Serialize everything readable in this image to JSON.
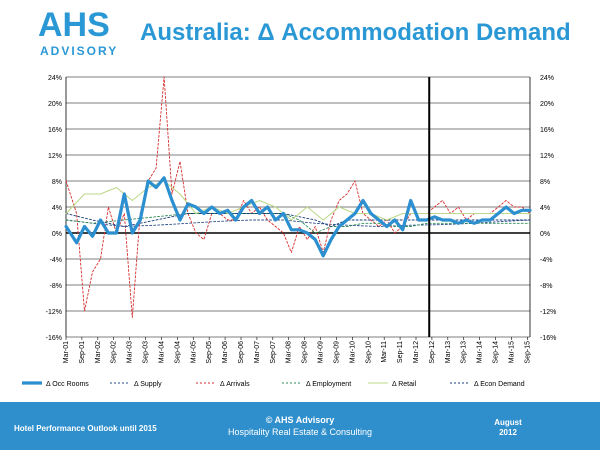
{
  "logo": {
    "main": "AHS",
    "sub": "ADVISORY"
  },
  "page_title": "Australia: Δ Accommodation Demand",
  "footer": {
    "left": "Hotel Performance Outlook until 2015",
    "center_line1": "© AHS Advisory",
    "center_line2": "Hospitality Real Estate & Consulting",
    "right_line1": "August",
    "right_line2": "2012"
  },
  "colors": {
    "brand": "#2b98d6",
    "footer_bg": "#2f8fcc"
  },
  "chart_data": {
    "type": "line",
    "yticks": [
      "-16%",
      "-12%",
      "-8%",
      "-4%",
      "0%",
      "4%",
      "8%",
      "12%",
      "16%",
      "20%",
      "24%"
    ],
    "ylim": [
      -16,
      24
    ],
    "x_start": 2001.167,
    "x_end": 2015.75,
    "categories": [
      "Mar-01",
      "Sep-01",
      "Mar-02",
      "Sep-02",
      "Mar-03",
      "Sep-03",
      "Mar-04",
      "Sep-04",
      "Mar-05",
      "Sep-05",
      "Mar-06",
      "Sep-06",
      "Mar-07",
      "Sep-07",
      "Mar-08",
      "Sep-08",
      "Mar-09",
      "Sep-09",
      "Mar-10",
      "Sep-10",
      "Mar-11",
      "Sep-11",
      "Mar-12",
      "Sep-12",
      "Mar-13",
      "Sep-13",
      "Mar-14",
      "Sep-14",
      "Mar-15",
      "Sep-15"
    ],
    "vline_x": 2012.583,
    "grid": true,
    "legend_position": "bottom",
    "series": [
      {
        "name": "Δ Occ Rooms",
        "color": "#2b8fd0",
        "width": 3.2,
        "dash": "",
        "x": [
          2001.17,
          2001.5,
          2001.75,
          2002.0,
          2002.25,
          2002.5,
          2002.75,
          2003.0,
          2003.25,
          2003.5,
          2003.75,
          2004.0,
          2004.25,
          2004.5,
          2004.75,
          2005.0,
          2005.25,
          2005.5,
          2005.75,
          2006.0,
          2006.25,
          2006.5,
          2006.75,
          2007.0,
          2007.25,
          2007.5,
          2007.75,
          2008.0,
          2008.25,
          2008.5,
          2008.75,
          2009.0,
          2009.25,
          2009.5,
          2009.75,
          2010.0,
          2010.25,
          2010.5,
          2010.75,
          2011.0,
          2011.25,
          2011.5,
          2011.75,
          2012.0,
          2012.25,
          2012.5,
          2012.75,
          2013.0,
          2013.25,
          2013.5,
          2013.75,
          2014.0,
          2014.25,
          2014.5,
          2014.75,
          2015.0,
          2015.25,
          2015.5,
          2015.75
        ],
        "y": [
          1,
          -1.5,
          1,
          -0.5,
          2,
          0,
          0,
          6,
          0,
          2,
          8,
          7,
          8.5,
          5,
          2,
          4.5,
          4,
          3,
          4,
          3,
          3.5,
          2,
          4,
          5,
          3,
          4,
          2,
          3,
          0.5,
          0.5,
          0,
          -1,
          -3.5,
          -1,
          1,
          2,
          3,
          5,
          3,
          2,
          1,
          2,
          0.5,
          5,
          2,
          2,
          2.5,
          2,
          2,
          1.5,
          2,
          1.5,
          2,
          2,
          3,
          4,
          3,
          3.5,
          3.5
        ]
      },
      {
        "name": "Δ Supply",
        "color": "#2a4d8a",
        "width": 0.9,
        "dash": "2,2",
        "x": [
          2001.17,
          2002,
          2003,
          2004,
          2005,
          2006,
          2007,
          2008,
          2009,
          2010,
          2011,
          2012,
          2013,
          2014,
          2015,
          2015.75
        ],
        "y": [
          2,
          1.5,
          1,
          1.2,
          1.5,
          1.8,
          2,
          2,
          1.5,
          1.2,
          1,
          1.2,
          1.3,
          1.5,
          1.8,
          2
        ]
      },
      {
        "name": "Δ Arrivals",
        "color": "#d62b2b",
        "width": 0.9,
        "dash": "2,2",
        "x": [
          2001.17,
          2001.5,
          2001.75,
          2002.0,
          2002.25,
          2002.5,
          2002.75,
          2003.0,
          2003.25,
          2003.5,
          2003.75,
          2004.0,
          2004.25,
          2004.5,
          2004.75,
          2005.0,
          2005.25,
          2005.5,
          2005.75,
          2006.0,
          2006.25,
          2006.5,
          2006.75,
          2007.0,
          2007.25,
          2007.5,
          2007.75,
          2008.0,
          2008.25,
          2008.5,
          2008.75,
          2009.0,
          2009.25,
          2009.5,
          2009.75,
          2010.0,
          2010.25,
          2010.5,
          2010.75,
          2011.0,
          2011.25,
          2011.5,
          2011.75,
          2012.0,
          2012.25,
          2012.5,
          2012.75,
          2013.0,
          2013.25,
          2013.5,
          2013.75,
          2014.0,
          2014.25,
          2014.5,
          2014.75,
          2015.0,
          2015.25,
          2015.5,
          2015.75
        ],
        "y": [
          8,
          3,
          -12,
          -6,
          -4,
          4,
          0,
          3,
          -13,
          3,
          8,
          10,
          24,
          6,
          11,
          3,
          0,
          -1,
          3,
          3,
          2,
          2,
          5,
          3,
          4,
          2,
          1,
          0,
          -3,
          1,
          -1,
          1,
          -3,
          2,
          5,
          6,
          8,
          3,
          2,
          1,
          2,
          0,
          1,
          3,
          3,
          3,
          4,
          5,
          3,
          4,
          2,
          3,
          3,
          3,
          4,
          5,
          4,
          4,
          3
        ]
      },
      {
        "name": "Δ Employment",
        "color": "#2e8b57",
        "width": 0.9,
        "dash": "2,2",
        "x": [
          2001.17,
          2002,
          2003,
          2004,
          2005,
          2006,
          2007,
          2008,
          2008.5,
          2009,
          2009.5,
          2010,
          2010.5,
          2011,
          2011.5,
          2012,
          2012.5,
          2013,
          2014,
          2015,
          2015.75
        ],
        "y": [
          2,
          1.5,
          2,
          2.5,
          3,
          3,
          3,
          3,
          2,
          0,
          1,
          1,
          1.5,
          1.5,
          1,
          1,
          1.5,
          1.5,
          1.5,
          1.5,
          1.5
        ]
      },
      {
        "name": "Δ Retail",
        "color": "#bcd88a",
        "width": 1.1,
        "dash": "",
        "x": [
          2001.17,
          2001.75,
          2002.25,
          2002.75,
          2003.25,
          2003.75,
          2004.25,
          2004.75,
          2005.25,
          2005.75,
          2006.25,
          2006.75,
          2007.25,
          2007.75,
          2008.25,
          2008.75,
          2009.25,
          2009.75,
          2010.25,
          2010.75,
          2011.25,
          2011.75,
          2012.25,
          2012.75,
          2013.25,
          2013.75,
          2014.25,
          2014.75,
          2015.25,
          2015.75
        ],
        "y": [
          3,
          6,
          6,
          7,
          5,
          7,
          8,
          6,
          3,
          4,
          3,
          4,
          5,
          4,
          2,
          4,
          2,
          4,
          3,
          3,
          2,
          3,
          3,
          3,
          3,
          3,
          3,
          3,
          3,
          3
        ]
      },
      {
        "name": "Δ Econ Demand",
        "color": "#1a3d7a",
        "width": 0.9,
        "dash": "2,2",
        "x": [
          2001.17,
          2002,
          2003,
          2004,
          2005,
          2006,
          2007,
          2008,
          2009,
          2009.5,
          2010,
          2011,
          2012,
          2013,
          2014,
          2015,
          2015.75
        ],
        "y": [
          3,
          2,
          1,
          2,
          3,
          3,
          3,
          3,
          2,
          1,
          2,
          2,
          2,
          2,
          2,
          2,
          2
        ]
      }
    ]
  }
}
